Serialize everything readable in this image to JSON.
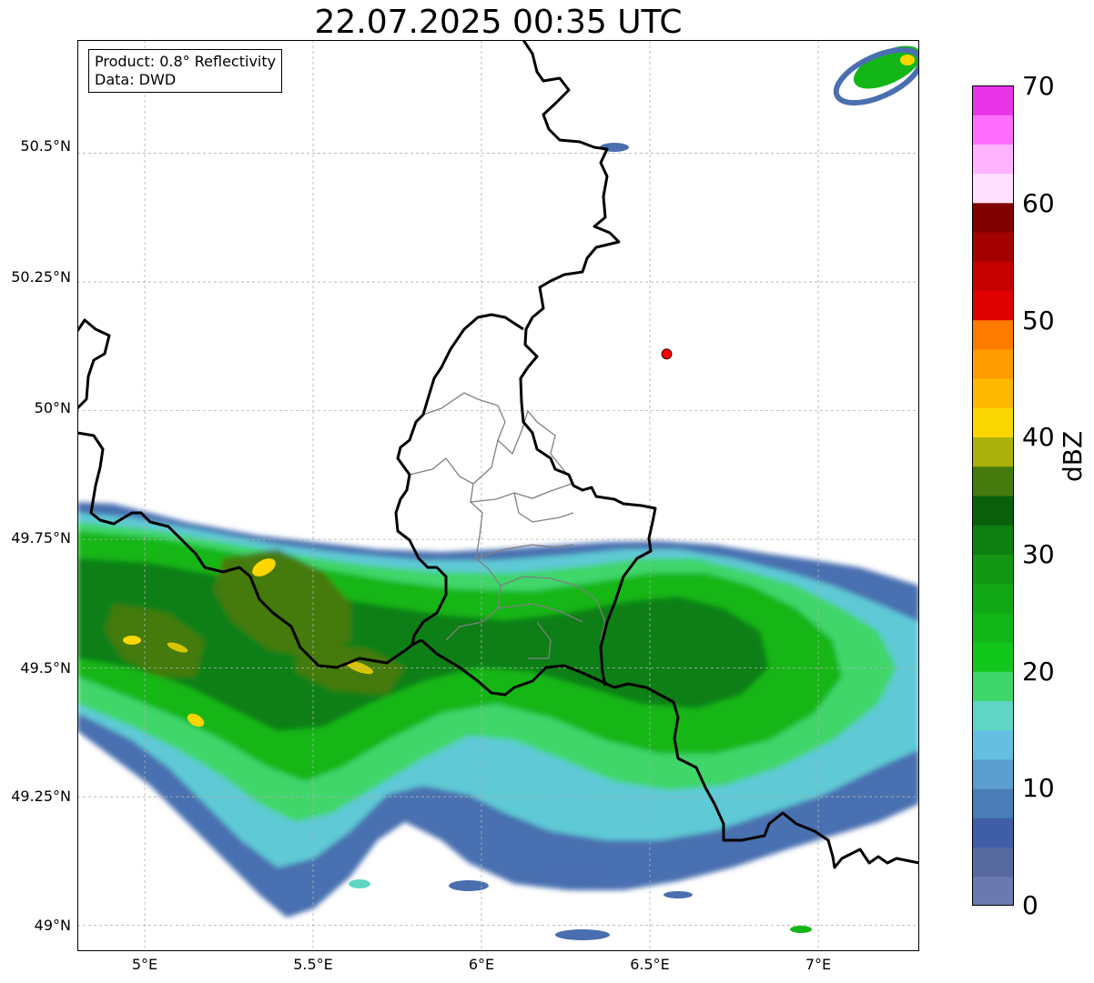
{
  "title": "22.07.2025 00:35 UTC",
  "info": {
    "product": "Product: 0.8° Reflectivity",
    "data": "Data: DWD"
  },
  "map": {
    "lon_range": [
      4.8,
      7.3
    ],
    "lat_range": [
      48.95,
      50.72
    ],
    "lat_ticks": [
      "50.5°N",
      "50.25°N",
      "50°N",
      "49.75°N",
      "49.5°N",
      "49.25°N",
      "49°N"
    ],
    "lon_ticks": [
      "5°E",
      "5.5°E",
      "6°E",
      "6.5°E",
      "7°E"
    ],
    "gridlines": true,
    "radar_site": {
      "lon": 6.55,
      "lat": 50.11,
      "color": "#ff0000"
    }
  },
  "colorbar": {
    "label": "dBZ",
    "range": [
      0,
      70
    ],
    "ticks": [
      "0",
      "10",
      "20",
      "30",
      "40",
      "50",
      "60",
      "70"
    ],
    "colors": [
      "#6a7aae",
      "#57699f",
      "#3f5ea7",
      "#4a7cb6",
      "#5b9dcf",
      "#64bfe0",
      "#5fd6c4",
      "#3fd66b",
      "#12c71c",
      "#13b617",
      "#12a715",
      "#139613",
      "#0e7f12",
      "#0a5f0c",
      "#457a0e",
      "#aab00c",
      "#fcd600",
      "#ffb800",
      "#ff9c00",
      "#ff7b00",
      "#e10000",
      "#c60000",
      "#a30000",
      "#7f0000",
      "#ffe1ff",
      "#ffb4ff",
      "#ff6eff",
      "#e935e9"
    ]
  }
}
